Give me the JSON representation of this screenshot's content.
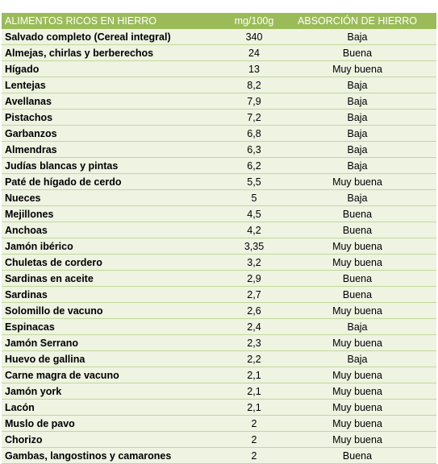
{
  "table": {
    "header": [
      "ALIMENTOS RICOS EN HIERRO",
      "mg/100g",
      "ABSORCIÓN DE HIERRO"
    ],
    "rows": [
      [
        "Salvado completo (Cereal integral)",
        "340",
        "Baja"
      ],
      [
        "Almejas, chirlas y berberechos",
        "24",
        "Buena"
      ],
      [
        "Hígado",
        "13",
        "Muy buena"
      ],
      [
        "Lentejas",
        "8,2",
        "Baja"
      ],
      [
        "Avellanas",
        "7,9",
        "Baja"
      ],
      [
        "Pistachos",
        "7,2",
        "Baja"
      ],
      [
        "Garbanzos",
        "6,8",
        "Baja"
      ],
      [
        "Almendras",
        "6,3",
        "Baja"
      ],
      [
        "Judías blancas y pintas",
        "6,2",
        "Baja"
      ],
      [
        "Paté de hígado de cerdo",
        "5,5",
        "Muy buena"
      ],
      [
        "Nueces",
        "5",
        "Baja"
      ],
      [
        "Mejillones",
        "4,5",
        "Buena"
      ],
      [
        "Anchoas",
        "4,2",
        "Buena"
      ],
      [
        "Jamón ibérico",
        "3,35",
        "Muy buena"
      ],
      [
        "Chuletas de cordero",
        "3,2",
        "Muy buena"
      ],
      [
        "Sardinas en aceite",
        "2,9",
        "Buena"
      ],
      [
        "Sardinas",
        "2,7",
        "Buena"
      ],
      [
        "Solomillo de vacuno",
        "2,6",
        "Muy buena"
      ],
      [
        "Espinacas",
        "2,4",
        "Baja"
      ],
      [
        "Jamón Serrano",
        "2,3",
        "Muy buena"
      ],
      [
        "Huevo de gallina",
        "2,2",
        "Baja"
      ],
      [
        "Carne magra de vacuno",
        "2,1",
        "Muy buena"
      ],
      [
        "Jamón york",
        "2,1",
        "Muy buena"
      ],
      [
        "Lacón",
        "2,1",
        "Muy buena"
      ],
      [
        "Muslo de pavo",
        "2",
        "Muy buena"
      ],
      [
        "Chorizo",
        "2",
        "Muy buena"
      ],
      [
        "Gambas, langostinos y camarones",
        "2",
        "Buena"
      ]
    ]
  }
}
